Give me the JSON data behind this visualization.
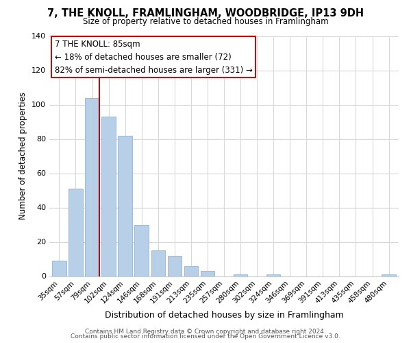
{
  "title": "7, THE KNOLL, FRAMLINGHAM, WOODBRIDGE, IP13 9DH",
  "subtitle": "Size of property relative to detached houses in Framlingham",
  "xlabel": "Distribution of detached houses by size in Framlingham",
  "ylabel": "Number of detached properties",
  "bar_labels": [
    "35sqm",
    "57sqm",
    "79sqm",
    "102sqm",
    "124sqm",
    "146sqm",
    "168sqm",
    "191sqm",
    "213sqm",
    "235sqm",
    "257sqm",
    "280sqm",
    "302sqm",
    "324sqm",
    "346sqm",
    "369sqm",
    "391sqm",
    "413sqm",
    "435sqm",
    "458sqm",
    "480sqm"
  ],
  "bar_values": [
    9,
    51,
    104,
    93,
    82,
    30,
    15,
    12,
    6,
    3,
    0,
    1,
    0,
    1,
    0,
    0,
    0,
    0,
    0,
    0,
    1
  ],
  "bar_color": "#b8cfe8",
  "bar_edge_color": "#a0bdd8",
  "ylim": [
    0,
    140
  ],
  "yticks": [
    0,
    20,
    40,
    60,
    80,
    100,
    120,
    140
  ],
  "vline_color": "#cc0000",
  "annotation_title": "7 THE KNOLL: 85sqm",
  "annotation_line1": "← 18% of detached houses are smaller (72)",
  "annotation_line2": "82% of semi-detached houses are larger (331) →",
  "annotation_box_color": "#ffffff",
  "annotation_box_edge": "#cc0000",
  "footer1": "Contains HM Land Registry data © Crown copyright and database right 2024.",
  "footer2": "Contains public sector information licensed under the Open Government Licence v3.0.",
  "background_color": "#ffffff",
  "grid_color": "#d8d8d8"
}
